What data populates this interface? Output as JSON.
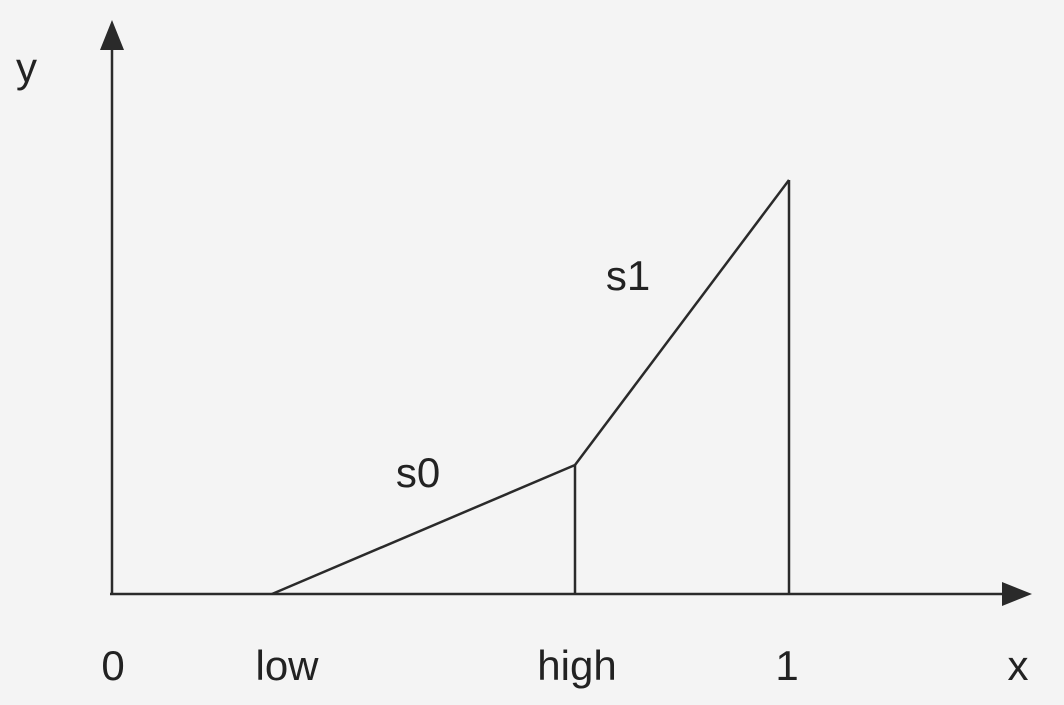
{
  "axes": {
    "y_label": "y",
    "x_label": "x"
  },
  "ticks": {
    "origin": "0",
    "low": "low",
    "high": "high",
    "one": "1"
  },
  "segments": {
    "s0": "s0",
    "s1": "s1"
  }
}
